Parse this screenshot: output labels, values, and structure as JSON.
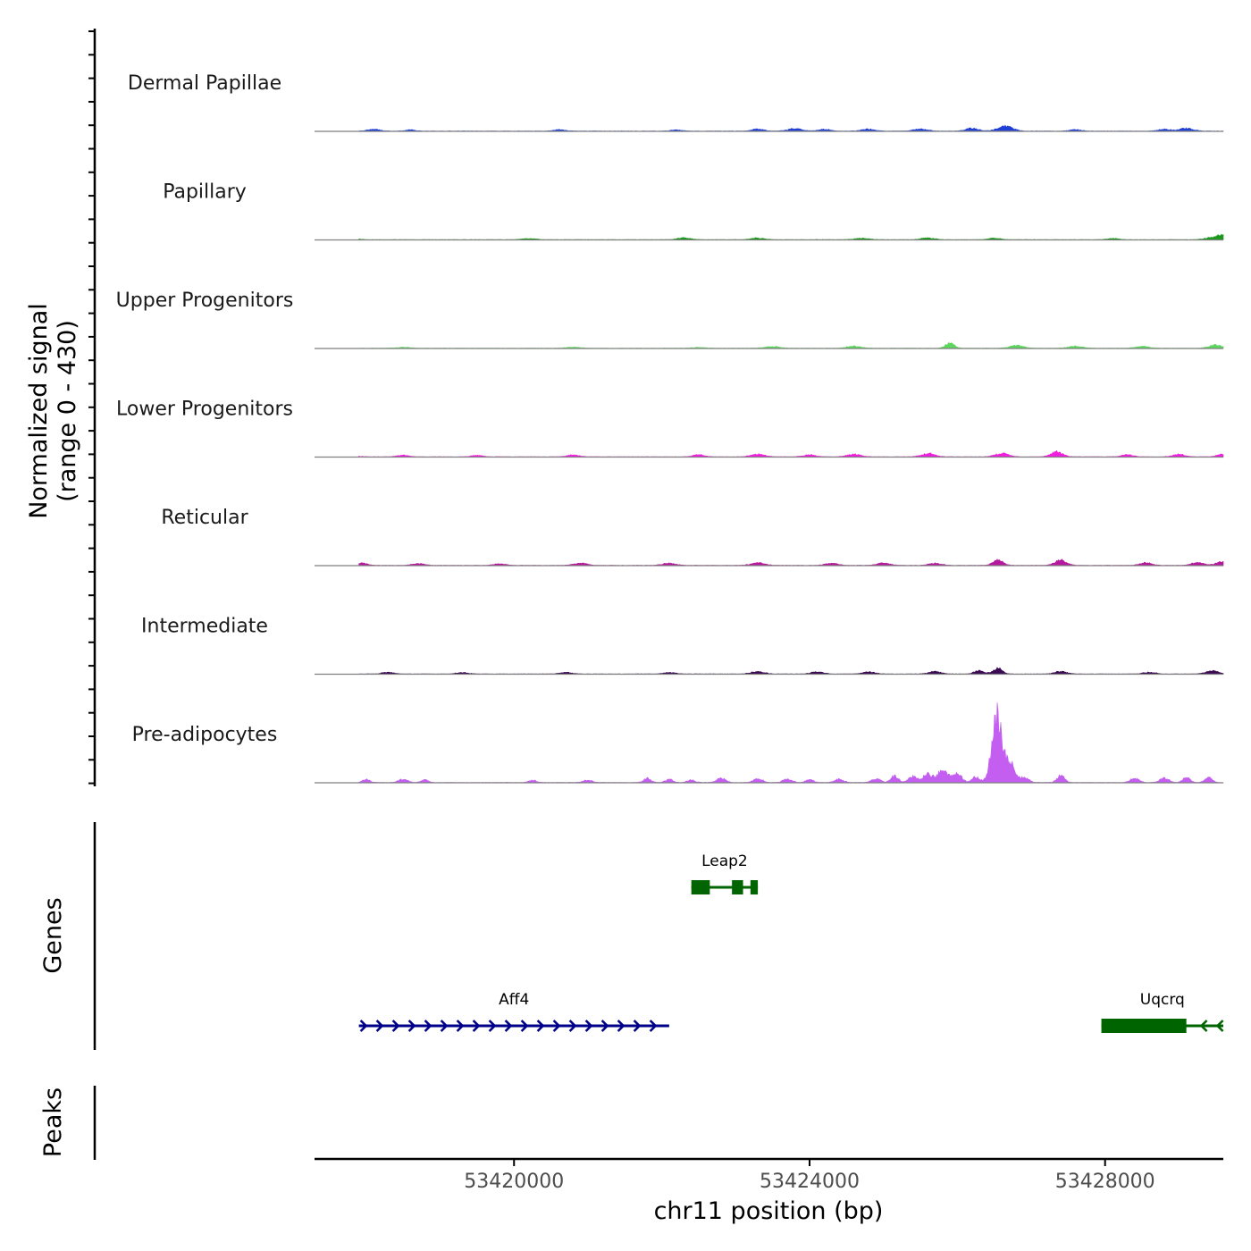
{
  "chart_data": {
    "type": "area",
    "description_free": true,
    "chromosome": "chr11",
    "region": [
      53417300,
      53429600
    ],
    "xlabel": "chr11 position (bp)",
    "xticks": [
      53420000,
      53424000,
      53428000
    ],
    "xtick_labels": [
      "53420000",
      "53424000",
      "53428000"
    ],
    "ylabel_line1": "Normalized signal",
    "ylabel_line2": "(range 0 - 430)",
    "ylim": [
      0,
      430
    ],
    "genes_label": "Genes",
    "peaks_label": "Peaks",
    "tracks": [
      {
        "name": "Dermal Papillae",
        "color": "#1f3fd6",
        "peaks": [
          [
            53418100,
            8,
            80
          ],
          [
            53418600,
            6,
            60
          ],
          [
            53420600,
            6,
            80
          ],
          [
            53422200,
            5,
            80
          ],
          [
            53423300,
            9,
            80
          ],
          [
            53423800,
            11,
            90
          ],
          [
            53424200,
            8,
            80
          ],
          [
            53424800,
            9,
            90
          ],
          [
            53425500,
            10,
            90
          ],
          [
            53426200,
            12,
            90
          ],
          [
            53426650,
            22,
            100
          ],
          [
            53427600,
            6,
            80
          ],
          [
            53428800,
            8,
            80
          ],
          [
            53429100,
            12,
            90
          ]
        ]
      },
      {
        "name": "Papillary",
        "color": "#1a9a1a",
        "peaks": [
          [
            53417800,
            6,
            80
          ],
          [
            53420200,
            5,
            90
          ],
          [
            53422300,
            8,
            90
          ],
          [
            53423300,
            7,
            90
          ],
          [
            53424700,
            6,
            90
          ],
          [
            53425600,
            8,
            90
          ],
          [
            53426500,
            7,
            80
          ],
          [
            53428100,
            5,
            80
          ],
          [
            53429400,
            6,
            80
          ],
          [
            53429600,
            22,
            90
          ]
        ]
      },
      {
        "name": "Upper Progenitors",
        "color": "#5cd65c",
        "peaks": [
          [
            53418500,
            4,
            90
          ],
          [
            53420800,
            5,
            90
          ],
          [
            53422500,
            4,
            90
          ],
          [
            53423500,
            8,
            90
          ],
          [
            53424600,
            9,
            90
          ],
          [
            53425900,
            22,
            60
          ],
          [
            53426800,
            12,
            90
          ],
          [
            53427600,
            9,
            90
          ],
          [
            53428500,
            8,
            90
          ],
          [
            53429500,
            14,
            90
          ]
        ]
      },
      {
        "name": "Lower Progenitors",
        "color": "#f01fde",
        "peaks": [
          [
            53417800,
            6,
            80
          ],
          [
            53418500,
            7,
            80
          ],
          [
            53419500,
            6,
            80
          ],
          [
            53420800,
            8,
            80
          ],
          [
            53422500,
            9,
            80
          ],
          [
            53423300,
            12,
            90
          ],
          [
            53424000,
            9,
            80
          ],
          [
            53424600,
            11,
            90
          ],
          [
            53425600,
            14,
            90
          ],
          [
            53426600,
            15,
            90
          ],
          [
            53427350,
            22,
            80
          ],
          [
            53428300,
            9,
            80
          ],
          [
            53429000,
            11,
            80
          ],
          [
            53429600,
            12,
            80
          ]
        ]
      },
      {
        "name": "Reticular",
        "color": "#b5189e",
        "peaks": [
          [
            53417950,
            10,
            70
          ],
          [
            53418700,
            8,
            80
          ],
          [
            53419800,
            7,
            80
          ],
          [
            53420900,
            10,
            90
          ],
          [
            53422100,
            9,
            90
          ],
          [
            53423300,
            11,
            90
          ],
          [
            53424300,
            9,
            80
          ],
          [
            53425000,
            10,
            90
          ],
          [
            53425700,
            10,
            80
          ],
          [
            53426550,
            22,
            70
          ],
          [
            53427400,
            22,
            80
          ],
          [
            53428550,
            12,
            80
          ],
          [
            53429250,
            12,
            80
          ],
          [
            53429600,
            18,
            90
          ]
        ]
      },
      {
        "name": "Intermediate",
        "color": "#3b0a52",
        "peaks": [
          [
            53418300,
            7,
            80
          ],
          [
            53419300,
            6,
            80
          ],
          [
            53420700,
            7,
            80
          ],
          [
            53422100,
            6,
            80
          ],
          [
            53423300,
            10,
            90
          ],
          [
            53424100,
            9,
            80
          ],
          [
            53424800,
            9,
            80
          ],
          [
            53425700,
            10,
            80
          ],
          [
            53426300,
            14,
            70
          ],
          [
            53426550,
            24,
            60
          ],
          [
            53427400,
            11,
            80
          ],
          [
            53428600,
            8,
            80
          ],
          [
            53429450,
            14,
            80
          ]
        ]
      },
      {
        "name": "Pre-adipocytes",
        "color": "#c35ef0",
        "peaks": [
          [
            53418000,
            14,
            50
          ],
          [
            53418500,
            14,
            60
          ],
          [
            53418800,
            12,
            50
          ],
          [
            53420250,
            10,
            50
          ],
          [
            53421000,
            10,
            60
          ],
          [
            53421800,
            18,
            50
          ],
          [
            53422100,
            14,
            50
          ],
          [
            53422400,
            12,
            50
          ],
          [
            53422800,
            18,
            60
          ],
          [
            53423300,
            18,
            60
          ],
          [
            53423700,
            14,
            60
          ],
          [
            53424000,
            14,
            50
          ],
          [
            53424400,
            14,
            60
          ],
          [
            53424900,
            16,
            60
          ],
          [
            53425150,
            30,
            50
          ],
          [
            53425400,
            25,
            60
          ],
          [
            53425600,
            38,
            60
          ],
          [
            53425800,
            52,
            70
          ],
          [
            53426000,
            40,
            60
          ],
          [
            53426250,
            24,
            50
          ],
          [
            53426540,
            290,
            70
          ],
          [
            53426720,
            78,
            60
          ],
          [
            53426900,
            22,
            60
          ],
          [
            53427400,
            30,
            50
          ],
          [
            53428400,
            18,
            60
          ],
          [
            53428800,
            20,
            60
          ],
          [
            53429100,
            22,
            50
          ],
          [
            53429400,
            22,
            50
          ]
        ]
      }
    ],
    "genes": [
      {
        "name": "Aff4",
        "start": 53417900,
        "end": 53422100,
        "strand": "+",
        "color": "#00008b",
        "row": 2,
        "exons": []
      },
      {
        "name": "Leap2",
        "start": 53422400,
        "end": 53423300,
        "strand": "-",
        "color": "#006400",
        "row": 1,
        "exons": [
          [
            53422400,
            53422650
          ],
          [
            53422950,
            53423100
          ],
          [
            53423200,
            53423300
          ]
        ]
      },
      {
        "name": "Uqcrq",
        "start": 53427950,
        "end": 53429600,
        "strand": "-",
        "color": "#006400",
        "row": 2,
        "exons": [
          [
            53427950,
            53429100
          ]
        ]
      }
    ]
  }
}
